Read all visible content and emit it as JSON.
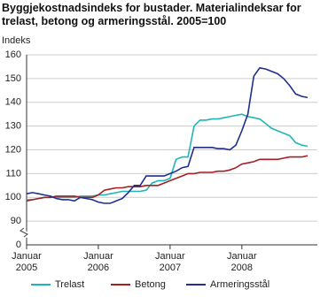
{
  "chart_data": {
    "type": "line",
    "title": "Byggjekostnadsindeks for bustader. Materialindeksar for trelast, betong og armeringsstål. 2005=100",
    "y_label": "Indeks",
    "categories": [
      "Januar 2005",
      null,
      null,
      null,
      null,
      null,
      null,
      null,
      null,
      null,
      null,
      null,
      "Januar 2006",
      null,
      null,
      null,
      null,
      null,
      null,
      null,
      null,
      null,
      null,
      null,
      "Januar 2007",
      null,
      null,
      null,
      null,
      null,
      null,
      null,
      null,
      null,
      null,
      null,
      "Januar 2008",
      null,
      null,
      null,
      null,
      null,
      null,
      null,
      null,
      null,
      null,
      null
    ],
    "series": [
      {
        "name": "Trelast",
        "color": "#1fb5b5",
        "values": [
          99,
          99,
          99.5,
          100,
          100,
          100,
          100,
          100,
          100,
          100.5,
          100.5,
          100.5,
          101,
          101,
          101.5,
          102,
          102.5,
          102.5,
          102.5,
          102.5,
          103,
          106,
          107,
          107,
          108,
          116,
          117,
          117,
          130,
          132.5,
          132.5,
          133,
          133,
          133.5,
          134,
          134.5,
          135,
          134,
          133.5,
          133,
          131,
          129,
          128,
          127,
          126,
          123,
          122,
          121.5
        ]
      },
      {
        "name": "Betong",
        "color": "#a51e22",
        "values": [
          98.5,
          99,
          99.5,
          100,
          100,
          100.5,
          100.5,
          100.5,
          100.5,
          100,
          100,
          100,
          101,
          103,
          103.5,
          104,
          104,
          104.5,
          104.5,
          104.5,
          105,
          105,
          105,
          106,
          107,
          108,
          109,
          110,
          110,
          110.5,
          110.5,
          110.5,
          111,
          111,
          111.5,
          112.5,
          114,
          114.5,
          115,
          116,
          116,
          116,
          116,
          116.5,
          117,
          117,
          117,
          117.5
        ]
      },
      {
        "name": "Armeringsstål",
        "color": "#1f2f8f",
        "values": [
          101.5,
          102,
          101.5,
          101,
          100.5,
          99.5,
          99,
          99,
          98.5,
          100,
          99.5,
          99,
          98,
          97.5,
          97.5,
          98.5,
          99.5,
          102,
          105,
          105,
          109,
          109,
          109,
          109,
          110,
          111,
          112.5,
          113,
          121,
          121,
          121,
          121,
          120.5,
          120.5,
          120,
          122,
          128,
          135,
          151,
          154.5,
          154,
          153,
          152,
          150,
          147,
          143.5,
          142.5,
          142
        ]
      }
    ],
    "ylim": [
      80,
      160
    ],
    "yticks": [
      {
        "value": 80,
        "label": "0"
      },
      90,
      100,
      110,
      120,
      130,
      140,
      150,
      160
    ],
    "grid": true
  }
}
